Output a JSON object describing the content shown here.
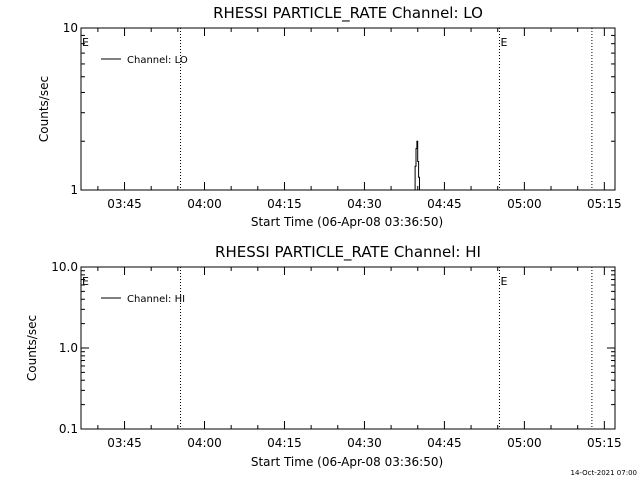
{
  "timestamp": "14-Oct-2021 07:00",
  "chart_data": [
    {
      "type": "line",
      "title": "RHESSI PARTICLE_RATE Channel: LO",
      "ylabel": "Counts/sec",
      "xlabel": "Start Time (06-Apr-08 03:36:50)",
      "x_start": "03:36:50",
      "x_end": "05:17:00",
      "xlim": [
        "03:36:50",
        "05:17:00"
      ],
      "y_scale": "log",
      "ylim": [
        1,
        10
      ],
      "y_ticks": [
        "1",
        "10"
      ],
      "x_ticks": [
        "03:45",
        "04:00",
        "04:15",
        "04:30",
        "04:45",
        "05:00",
        "05:15"
      ],
      "legend": "Channel: LO",
      "legend_position": "top-left",
      "event_markers": [
        "03:55:30",
        "04:55:20",
        "05:12:40"
      ],
      "flags": [
        {
          "text": "E",
          "time": "03:36:50"
        },
        {
          "text": "E",
          "time": "04:55:20"
        }
      ],
      "series": [
        {
          "name": "Channel: LO",
          "points": [
            [
              "04:39:30",
              1
            ],
            [
              "04:39:30",
              1.4
            ],
            [
              "04:39:40",
              1.4
            ],
            [
              "04:39:40",
              1.8
            ],
            [
              "04:39:50",
              1.8
            ],
            [
              "04:39:50",
              2.0
            ],
            [
              "04:40:00",
              2.0
            ],
            [
              "04:40:00",
              1.5
            ],
            [
              "04:40:10",
              1.5
            ],
            [
              "04:40:10",
              1.2
            ],
            [
              "04:40:20",
              1.2
            ],
            [
              "04:40:20",
              1
            ]
          ]
        }
      ]
    },
    {
      "type": "line",
      "title": "RHESSI PARTICLE_RATE Channel: HI",
      "ylabel": "Counts/sec",
      "xlabel": "Start Time (06-Apr-08 03:36:50)",
      "x_start": "03:36:50",
      "x_end": "05:17:00",
      "xlim": [
        "03:36:50",
        "05:17:00"
      ],
      "y_scale": "log",
      "ylim": [
        0.1,
        10
      ],
      "y_ticks": [
        "0.1",
        "1.0",
        "10.0"
      ],
      "x_ticks": [
        "03:45",
        "04:00",
        "04:15",
        "04:30",
        "04:45",
        "05:00",
        "05:15"
      ],
      "legend": "Channel: HI",
      "legend_position": "top-left",
      "event_markers": [
        "03:55:30",
        "04:55:20",
        "05:12:40"
      ],
      "flags": [
        {
          "text": "E",
          "time": "03:36:50"
        },
        {
          "text": "E",
          "time": "04:55:20"
        }
      ],
      "series": [
        {
          "name": "Channel: HI",
          "points": []
        }
      ]
    }
  ]
}
